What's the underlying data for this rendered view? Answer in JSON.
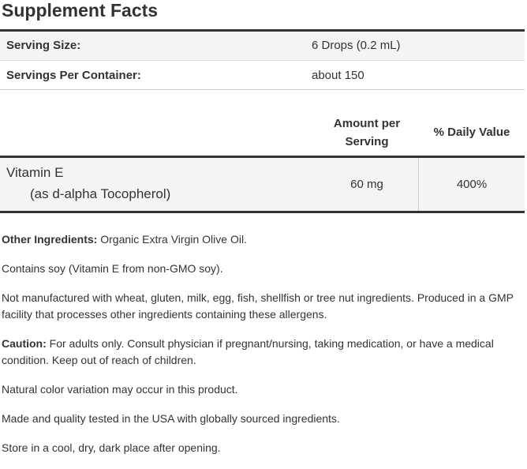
{
  "title": "Supplement Facts",
  "serving": [
    {
      "label": "Serving Size:",
      "value": "6 Drops (0.2 mL)"
    },
    {
      "label": "Servings Per Container:",
      "value": "about 150"
    }
  ],
  "table": {
    "headers": [
      "Amount per Serving",
      "% Daily Value"
    ],
    "rows": [
      {
        "name": "Vitamin E",
        "detail": "(as d-alpha Tocopherol)",
        "amount": "60 mg",
        "daily_value": "400%"
      }
    ]
  },
  "notes": [
    {
      "label": "Other Ingredients:",
      "text": "Organic Extra Virgin Olive Oil."
    },
    {
      "text": "Contains soy (Vitamin E from non-GMO soy)."
    },
    {
      "text": "Not manufactured with wheat, gluten, milk, egg, fish, shellfish or tree nut ingredients. Produced in a GMP facility that processes other ingredients containing these allergens."
    },
    {
      "label": "Caution:",
      "text": "For adults only. Consult physician if pregnant/nursing, taking medication, or have a medical condition. Keep out of reach of children."
    },
    {
      "text": "Natural color variation may occur in this product."
    },
    {
      "text": "Made and quality tested in the USA with globally sourced ingredients."
    },
    {
      "text": "Store in a cool, dry, dark place after opening."
    }
  ]
}
